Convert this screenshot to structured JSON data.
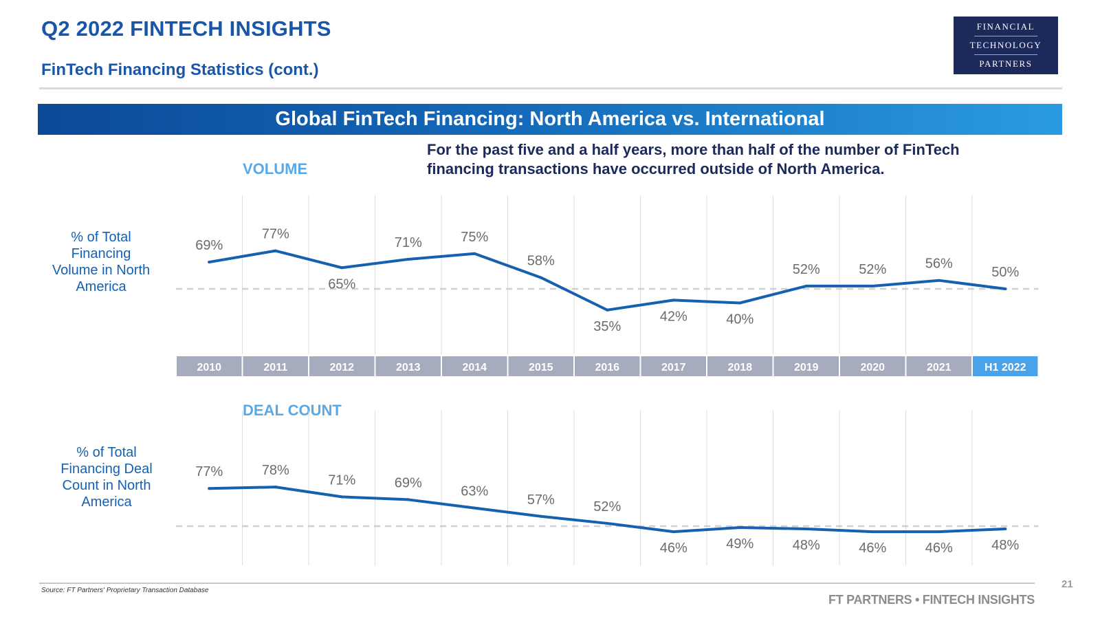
{
  "header": {
    "title": "Q2 2022 FINTECH INSIGHTS",
    "subtitle": "FinTech Financing Statistics (cont.)",
    "logo": [
      "FINANCIAL",
      "TECHNOLOGY",
      "PARTNERS"
    ]
  },
  "banner": "Global FinTech Financing: North America vs. International",
  "note": "For the past five and a half years, more than half of the number of FinTech financing transactions have occurred outside of North America.",
  "colors": {
    "line": "#1561b0",
    "axis_band": "#a6abbd",
    "highlight": "#4aa3e8",
    "label_gray": "#6b6b6b",
    "reference_line": "#d0d0d0"
  },
  "chart_data": [
    {
      "type": "line",
      "section_label": "VOLUME",
      "ylabel": "% of Total Financing Volume in North America",
      "categories": [
        "2010",
        "2011",
        "2012",
        "2013",
        "2014",
        "2015",
        "2016",
        "2017",
        "2018",
        "2019",
        "2020",
        "2021",
        "H1 2022"
      ],
      "values": [
        69,
        77,
        65,
        71,
        75,
        58,
        35,
        42,
        40,
        52,
        52,
        56,
        50
      ],
      "data_labels": [
        "69%",
        "77%",
        "65%",
        "71%",
        "75%",
        "58%",
        "35%",
        "42%",
        "40%",
        "52%",
        "52%",
        "56%",
        "50%"
      ],
      "reference_line": 50,
      "highlighted_category": "H1 2022"
    },
    {
      "type": "line",
      "section_label": "DEAL COUNT",
      "ylabel": "% of Total Financing Deal Count in North America",
      "categories": [
        "2010",
        "2011",
        "2012",
        "2013",
        "2014",
        "2015",
        "2016",
        "2017",
        "2018",
        "2019",
        "2020",
        "2021",
        "H1 2022"
      ],
      "values": [
        77,
        78,
        71,
        69,
        63,
        57,
        52,
        46,
        49,
        48,
        46,
        46,
        48
      ],
      "data_labels": [
        "77%",
        "78%",
        "71%",
        "69%",
        "63%",
        "57%",
        "52%",
        "46%",
        "49%",
        "48%",
        "46%",
        "46%",
        "48%"
      ],
      "reference_line": 50
    }
  ],
  "footer": {
    "source": "Source: FT Partners' Proprietary Transaction Database",
    "page": "21",
    "brand": "FT PARTNERS • FINTECH INSIGHTS"
  }
}
